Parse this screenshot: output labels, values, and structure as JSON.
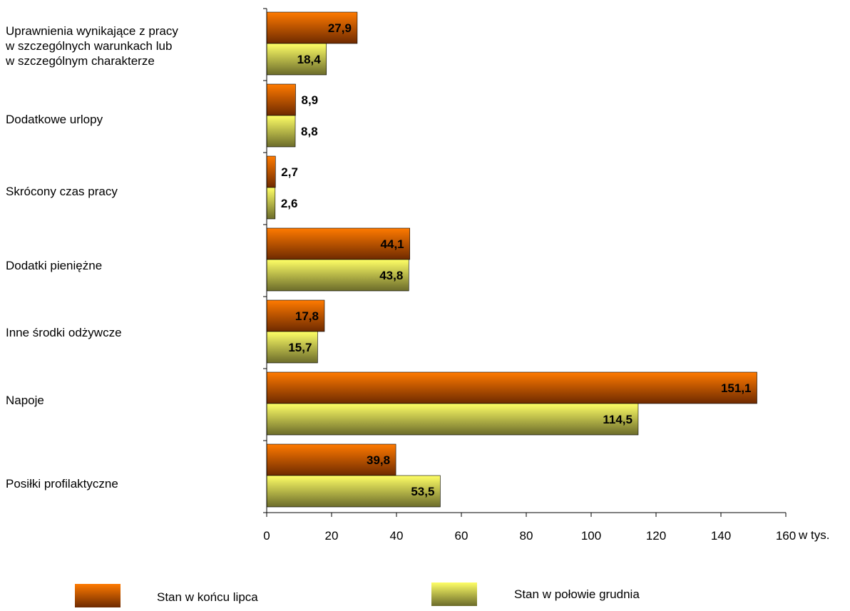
{
  "chart_data": {
    "type": "bar",
    "orientation": "horizontal",
    "categories": [
      "Uprawnienia wynikające z pracy\n w szczególnych warunkach lub\n w szczególnym charakterze",
      "Dodatkowe urlopy",
      "Skrócony czas pracy",
      "Dodatki pieniężne",
      "Inne środki odżywcze",
      "Napoje",
      "Posiłki profilaktyczne"
    ],
    "series": [
      {
        "name": "Stan w końcu lipca",
        "values": [
          27.9,
          8.9,
          2.7,
          44.1,
          17.8,
          151.1,
          39.8
        ],
        "value_labels": [
          "27,9",
          "8,9",
          "2,7",
          "44,1",
          "17,8",
          "151,1",
          "39,8"
        ],
        "color_top": "#ff7a00",
        "color_bottom": "#6e2a00"
      },
      {
        "name": "Stan w połowie grudnia",
        "values": [
          18.4,
          8.8,
          2.6,
          43.8,
          15.7,
          114.5,
          53.5
        ],
        "value_labels": [
          "18,4",
          "8,8",
          "2,6",
          "43,8",
          "15,7",
          "114,5",
          "53,5"
        ],
        "color_top": "#ffff66",
        "color_bottom": "#6b6b2a"
      }
    ],
    "xlim": [
      0,
      160
    ],
    "xticks": [
      0,
      20,
      40,
      60,
      80,
      100,
      120,
      140,
      160
    ],
    "xunit_label": "w tys.",
    "legend_position": "bottom",
    "grid": false
  }
}
